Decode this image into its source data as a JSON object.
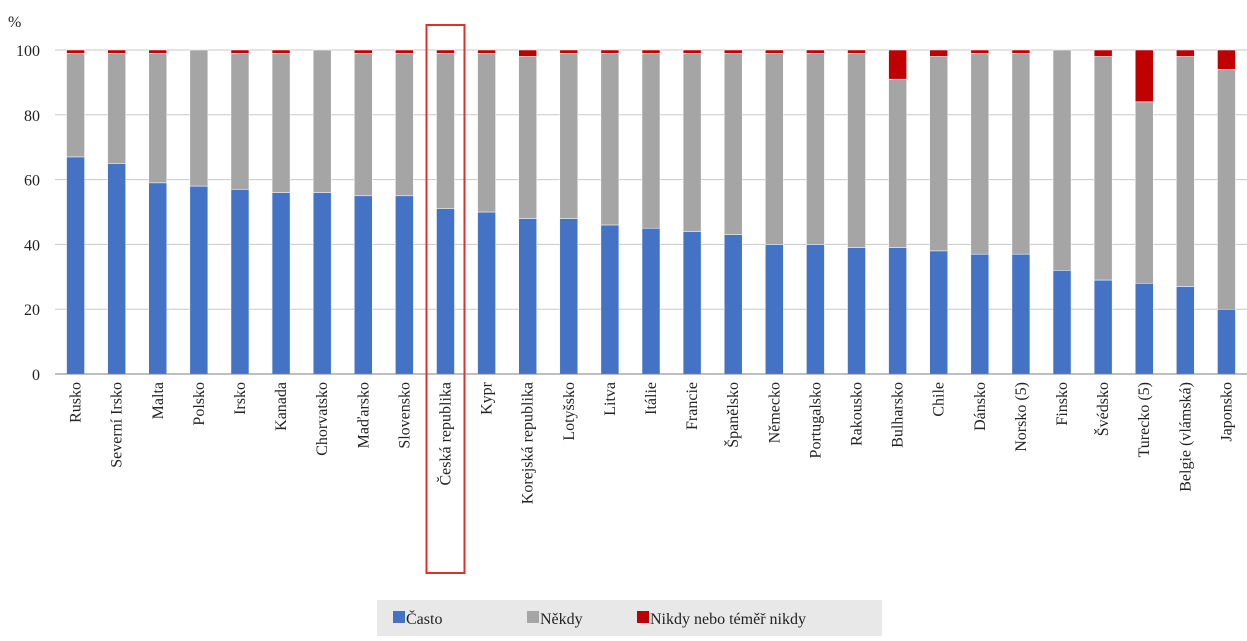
{
  "chart_data": {
    "type": "bar",
    "stacked": true,
    "ylabel": "%",
    "ylim": [
      0,
      100
    ],
    "yticks": [
      0,
      20,
      40,
      60,
      80,
      100
    ],
    "grid": true,
    "legend_position": "bottom-center",
    "highlighted_category": "Česká republika",
    "categories": [
      "Rusko",
      "Severní Irsko",
      "Malta",
      "Polsko",
      "Irsko",
      "Kanada",
      "Chorvatsko",
      "Maďarsko",
      "Slovensko",
      "Česká republika",
      "Kypr",
      "Korejská republika",
      "Lotyšsko",
      "Litva",
      "Itálie",
      "Francie",
      "Španělsko",
      "Německo",
      "Portugalsko",
      "Rakousko",
      "Bulharsko",
      "Chile",
      "Dánsko",
      "Norsko (5)",
      "Finsko",
      "Švédsko",
      "Turecko (5)",
      "Belgie (vlámská)",
      "Japonsko"
    ],
    "series": [
      {
        "name": "Často",
        "color": "#4472C4",
        "values": [
          67,
          65,
          59,
          58,
          57,
          56,
          56,
          55,
          55,
          51,
          50,
          48,
          48,
          46,
          45,
          44,
          43,
          40,
          40,
          39,
          39,
          38,
          37,
          37,
          32,
          29,
          28,
          27,
          20
        ]
      },
      {
        "name": "Někdy",
        "color": "#A5A5A5",
        "values": [
          32,
          34,
          40,
          42,
          42,
          43,
          44,
          44,
          44,
          48,
          49,
          50,
          51,
          53,
          54,
          55,
          56,
          59,
          59,
          60,
          52,
          60,
          62,
          62,
          68,
          69,
          56,
          71,
          74
        ]
      },
      {
        "name": "Nikdy nebo téměř nikdy",
        "color": "#C00000",
        "values": [
          1,
          1,
          1,
          0,
          1,
          1,
          0,
          1,
          1,
          1,
          1,
          2,
          1,
          1,
          1,
          1,
          1,
          1,
          1,
          1,
          9,
          2,
          1,
          1,
          0,
          2,
          16,
          2,
          6
        ]
      }
    ]
  }
}
